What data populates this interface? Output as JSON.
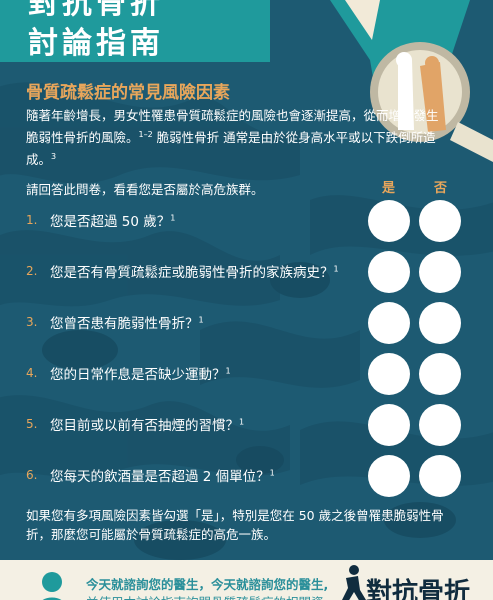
{
  "header": {
    "title_line1": "對抗骨折",
    "title_line2": "討論指南"
  },
  "section": {
    "title": "骨質疏鬆症的常見風險因素",
    "intro_part1": "隨著年齡增長，男女性罹患骨質疏鬆症的風險也會逐漸提高，從而增加發生脆弱性骨折的風險。",
    "intro_ref1": "1–2",
    "intro_part2": " 脆弱性骨折 通常是由於從身高水平或以下跌倒所造成。",
    "intro_ref2": "3"
  },
  "questionnaire": {
    "prompt": "請回答此問卷，看看您是否屬於高危族群。",
    "yes_label": "是",
    "no_label": "否",
    "questions": [
      {
        "num": "1.",
        "text": "您是否超過 50 歲？",
        "ref": "1"
      },
      {
        "num": "2.",
        "text": "您是否有骨質疏鬆症或脆弱性骨折的家族病史？",
        "ref": "1"
      },
      {
        "num": "3.",
        "text": "您曾否患有脆弱性骨折？",
        "ref": "1"
      },
      {
        "num": "4.",
        "text": "您的日常作息是否缺少運動？",
        "ref": "1"
      },
      {
        "num": "5.",
        "text": "您目前或以前有否抽煙的習慣？",
        "ref": "1"
      },
      {
        "num": "6.",
        "text": "您每天的飲酒量是否超過 2 個單位？",
        "ref": "1"
      }
    ]
  },
  "outro": "如果您有多項風險因素皆勾選「是」，特別是您在 50 歲之後曾罹患脆弱性骨折，那麼您可能屬於骨質疏鬆症的高危一族。",
  "footer": {
    "line1": "今天就諮詢您的醫生，今天就諮詢您的醫生,",
    "line2": "並使用本討論指南詢問骨質疏鬆症的相關資",
    "brand": "對抗骨折"
  },
  "colors": {
    "background": "#1d5a72",
    "accent_orange": "#e8a65b",
    "teal": "#1f9a9c"
  }
}
